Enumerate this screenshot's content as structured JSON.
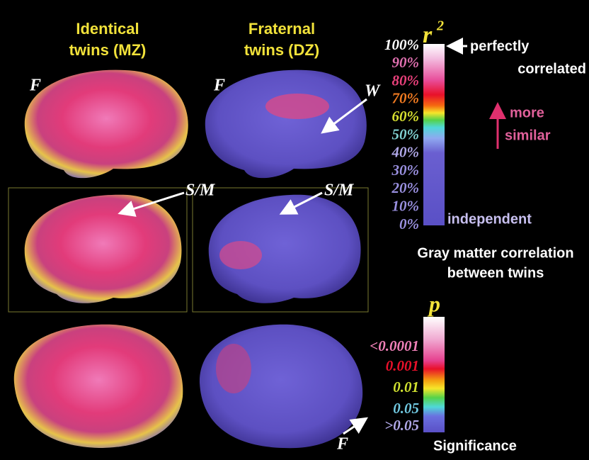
{
  "headers": [
    {
      "line1": "Identical",
      "line2": "twins (MZ)"
    },
    {
      "line1": "Fraternal",
      "line2": "twins (DZ)"
    }
  ],
  "brain_labels": [
    "F",
    "F",
    "W",
    "S/M",
    "S/M",
    "F"
  ],
  "colorbar_r2": {
    "symbol": "r",
    "superscript": "2",
    "ticks": [
      "100%",
      "90%",
      "80%",
      "70%",
      "60%",
      "50%",
      "40%",
      "30%",
      "20%",
      "10%",
      "0%"
    ],
    "top_note": [
      "perfectly",
      "correlated"
    ],
    "mid_note": [
      "more",
      "similar"
    ],
    "bottom_note": "independent",
    "caption": [
      "Gray matter correlation",
      "between twins"
    ]
  },
  "colorbar_p": {
    "symbol": "p",
    "ticks": [
      "<0.0001",
      "0.001",
      "0.01",
      "0.05",
      ">0.05"
    ],
    "caption": "Significance"
  }
}
